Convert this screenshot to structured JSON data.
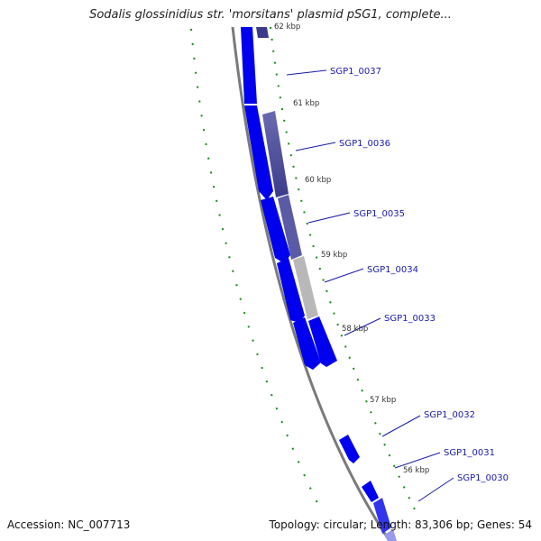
{
  "title": "Sodalis glossinidius str. 'morsitans' plasmid pSG1, complete...",
  "accession": "Accession: NC_007713",
  "topology": "Topology: circular; Length: 83,306 bp; Genes: 54",
  "ticks": [
    "62 kbp",
    "61 kbp",
    "60 kbp",
    "59 kbp",
    "58 kbp",
    "57 kbp",
    "56 kbp"
  ],
  "genes": [
    "SGP1_0037",
    "SGP1_0036",
    "SGP1_0035",
    "SGP1_0034",
    "SGP1_0033",
    "SGP1_0032",
    "SGP1_0031",
    "SGP1_0030"
  ],
  "colors": {
    "backbone": "#7a7a7a",
    "gene_blue": "#0000ee",
    "gene_dark": "#3b3b8a",
    "gene_grey": "#b8b8b8",
    "tick_green": "#1a8a1a",
    "label_blue": "#1a1aa8"
  }
}
